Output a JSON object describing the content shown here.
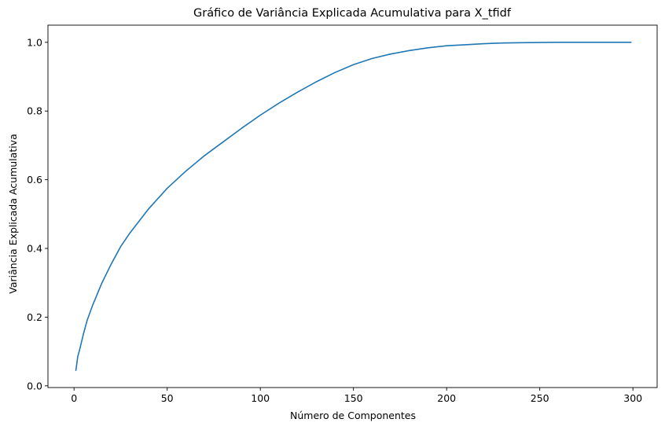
{
  "chart_data": {
    "type": "line",
    "title": "Gráfico de Variância Explicada Acumulativa para X_tfidf",
    "xlabel": "Número de Componentes",
    "ylabel": "Variância Explicada Acumulativa",
    "xlim": [
      -14,
      313
    ],
    "ylim": [
      -0.005,
      1.05
    ],
    "grid": false,
    "x_ticks": [
      0,
      50,
      100,
      150,
      200,
      250,
      300
    ],
    "x_tick_labels": [
      "0",
      "50",
      "100",
      "150",
      "200",
      "250",
      "300"
    ],
    "y_ticks": [
      0.0,
      0.2,
      0.4,
      0.6,
      0.8,
      1.0
    ],
    "y_tick_labels": [
      "0.0",
      "0.2",
      "0.4",
      "0.6",
      "0.8",
      "1.0"
    ],
    "series": [
      {
        "color": "#1f77b4",
        "x": [
          1,
          2,
          3,
          5,
          7,
          10,
          15,
          20,
          25,
          30,
          40,
          50,
          60,
          70,
          80,
          90,
          100,
          110,
          120,
          130,
          140,
          150,
          160,
          170,
          180,
          190,
          200,
          210,
          220,
          230,
          240,
          250,
          260,
          270,
          280,
          290,
          299
        ],
        "y": [
          0.045,
          0.085,
          0.105,
          0.15,
          0.19,
          0.235,
          0.3,
          0.355,
          0.405,
          0.445,
          0.515,
          0.575,
          0.625,
          0.67,
          0.71,
          0.75,
          0.788,
          0.823,
          0.855,
          0.885,
          0.912,
          0.935,
          0.953,
          0.966,
          0.976,
          0.984,
          0.99,
          0.993,
          0.996,
          0.998,
          0.999,
          0.9995,
          1.0,
          1.0,
          1.0,
          1.0,
          1.0
        ]
      }
    ]
  }
}
